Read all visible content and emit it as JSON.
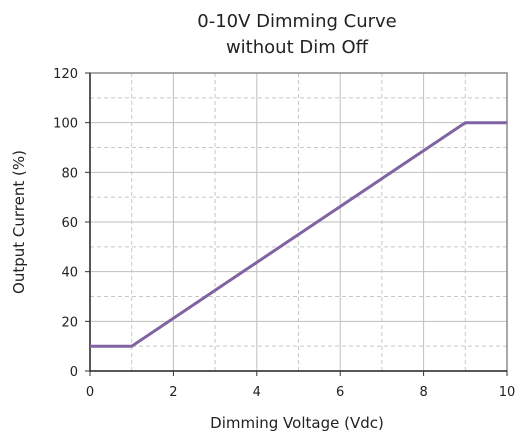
{
  "chart_data": {
    "type": "line",
    "title_lines": [
      "0-10V Dimming Curve",
      "without Dim Off"
    ],
    "xlabel": "Dimming Voltage (Vdc)",
    "ylabel": "Output Current (%)",
    "xlim": [
      0,
      10
    ],
    "ylim": [
      0,
      120
    ],
    "x_ticks": [
      0,
      2,
      4,
      6,
      8,
      10
    ],
    "y_ticks": [
      0,
      20,
      40,
      60,
      80,
      100,
      120
    ],
    "x_tick_labels": [
      "0",
      "2",
      "4",
      "6",
      "8",
      "10"
    ],
    "y_tick_labels": [
      "0",
      "20",
      "40",
      "60",
      "80",
      "100",
      "120"
    ],
    "grid": true,
    "series": [
      {
        "x": [
          0,
          1,
          9,
          10
        ],
        "y": [
          10,
          10,
          100,
          100
        ],
        "color": "#8064a2"
      }
    ]
  }
}
